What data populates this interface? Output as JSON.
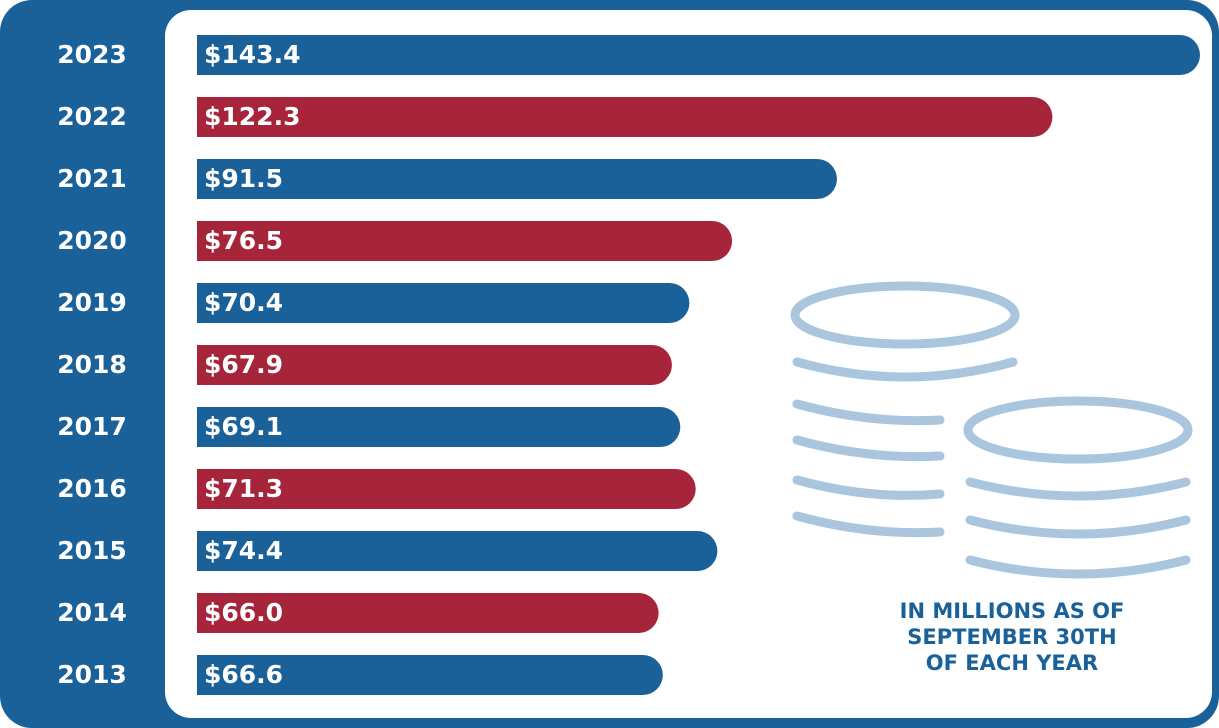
{
  "chart_data": {
    "type": "hbar",
    "categories": [
      "2023",
      "2022",
      "2021",
      "2020",
      "2019",
      "2018",
      "2017",
      "2016",
      "2015",
      "2014",
      "2013"
    ],
    "values": [
      143.4,
      122.3,
      91.5,
      76.5,
      70.4,
      67.9,
      69.1,
      71.3,
      74.4,
      66.0,
      66.6
    ],
    "value_labels": [
      "$143.4",
      "$122.3",
      "$91.5",
      "$76.5",
      "$70.4",
      "$67.9",
      "$69.1",
      "$71.3",
      "$74.4",
      "$66.0",
      "$66.6"
    ],
    "colors": [
      "#1a6199",
      "#a6253b",
      "#1a6199",
      "#a6253b",
      "#1a6199",
      "#a6253b",
      "#1a6199",
      "#a6253b",
      "#1a6199",
      "#a6253b",
      "#1a6199"
    ],
    "annotation": [
      "IN MILLIONS AS OF",
      "SEPTEMBER 30TH",
      "OF EACH YEAR"
    ]
  }
}
